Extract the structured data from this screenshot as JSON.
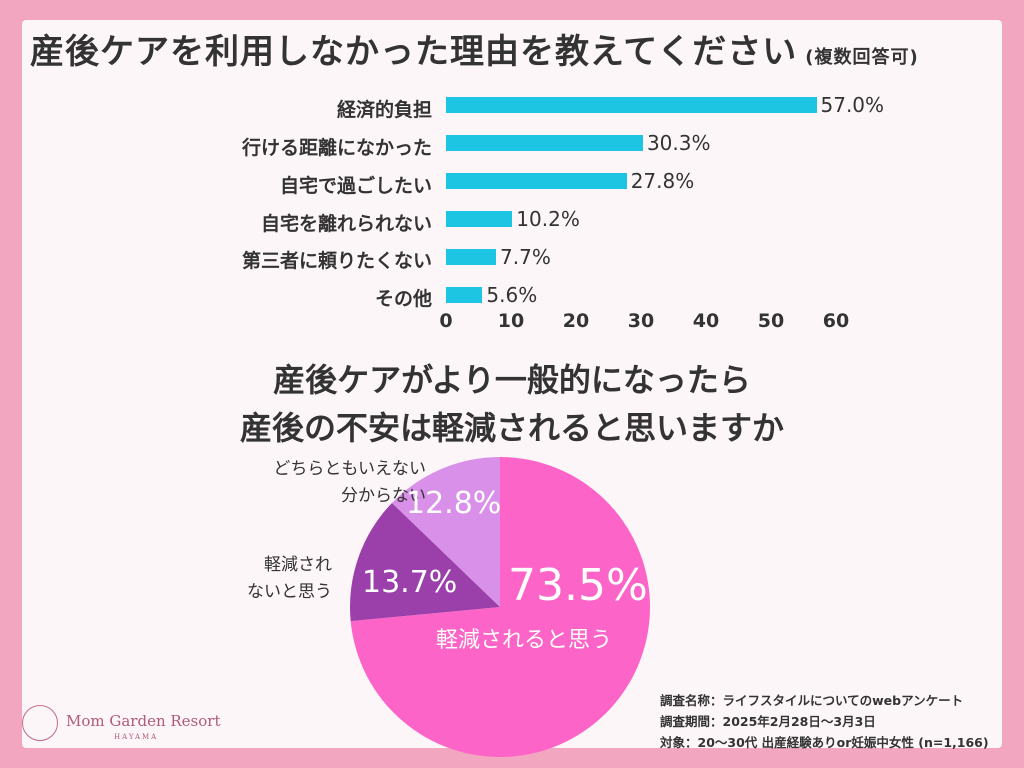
{
  "chart_data": [
    {
      "type": "bar",
      "orientation": "horizontal",
      "title": "産後ケアを利用しなかった理由を教えてください",
      "subtitle": "(複数回答可)",
      "categories": [
        "経済的負担",
        "行ける距離になかった",
        "自宅で過ごしたい",
        "自宅を離れられない",
        "第三者に頼りたくない",
        "その他"
      ],
      "values": [
        57.0,
        30.3,
        27.8,
        10.2,
        7.7,
        5.6
      ],
      "value_labels": [
        "57.0%",
        "30.3%",
        "27.8%",
        "10.2%",
        "7.7%",
        "5.6%"
      ],
      "xlim": [
        0,
        60
      ],
      "xticks": [
        "0",
        "10",
        "20",
        "30",
        "40",
        "50",
        "60"
      ],
      "bar_color": "#1ec5e2",
      "grid": false
    },
    {
      "type": "pie",
      "title_lines": [
        "産後ケアがより一般的になったら",
        "産後の不安は軽減されると思いますか"
      ],
      "slices": [
        {
          "label": "軽減されると思う",
          "value": 73.5,
          "value_label": "73.5%",
          "color": "#fc64c8"
        },
        {
          "label": "軽減され ないと思う",
          "value": 13.7,
          "value_label": "13.7%",
          "color": "#9b3fab"
        },
        {
          "label": "どちらともいえない 分からない",
          "value": 12.8,
          "value_label": "12.8%",
          "color": "#d890e8"
        }
      ],
      "outside_labels": {
        "reduce_no": [
          "軽減され",
          "ないと思う"
        ],
        "unknown": [
          "どちらともいえない",
          "分からない"
        ]
      }
    }
  ],
  "notes": [
    "調査名称：ライフスタイルについてのwebアンケート",
    "調査期間：2025年2月28日〜3月3日",
    "対象：20〜30代 出産経験ありor妊娠中女性 (n=1,166)"
  ],
  "logo": {
    "name": "Mom Garden Resort",
    "sub": "HAYAMA"
  },
  "colors": {
    "frame": "#f3a6c0",
    "card": "#fdf6f8"
  }
}
